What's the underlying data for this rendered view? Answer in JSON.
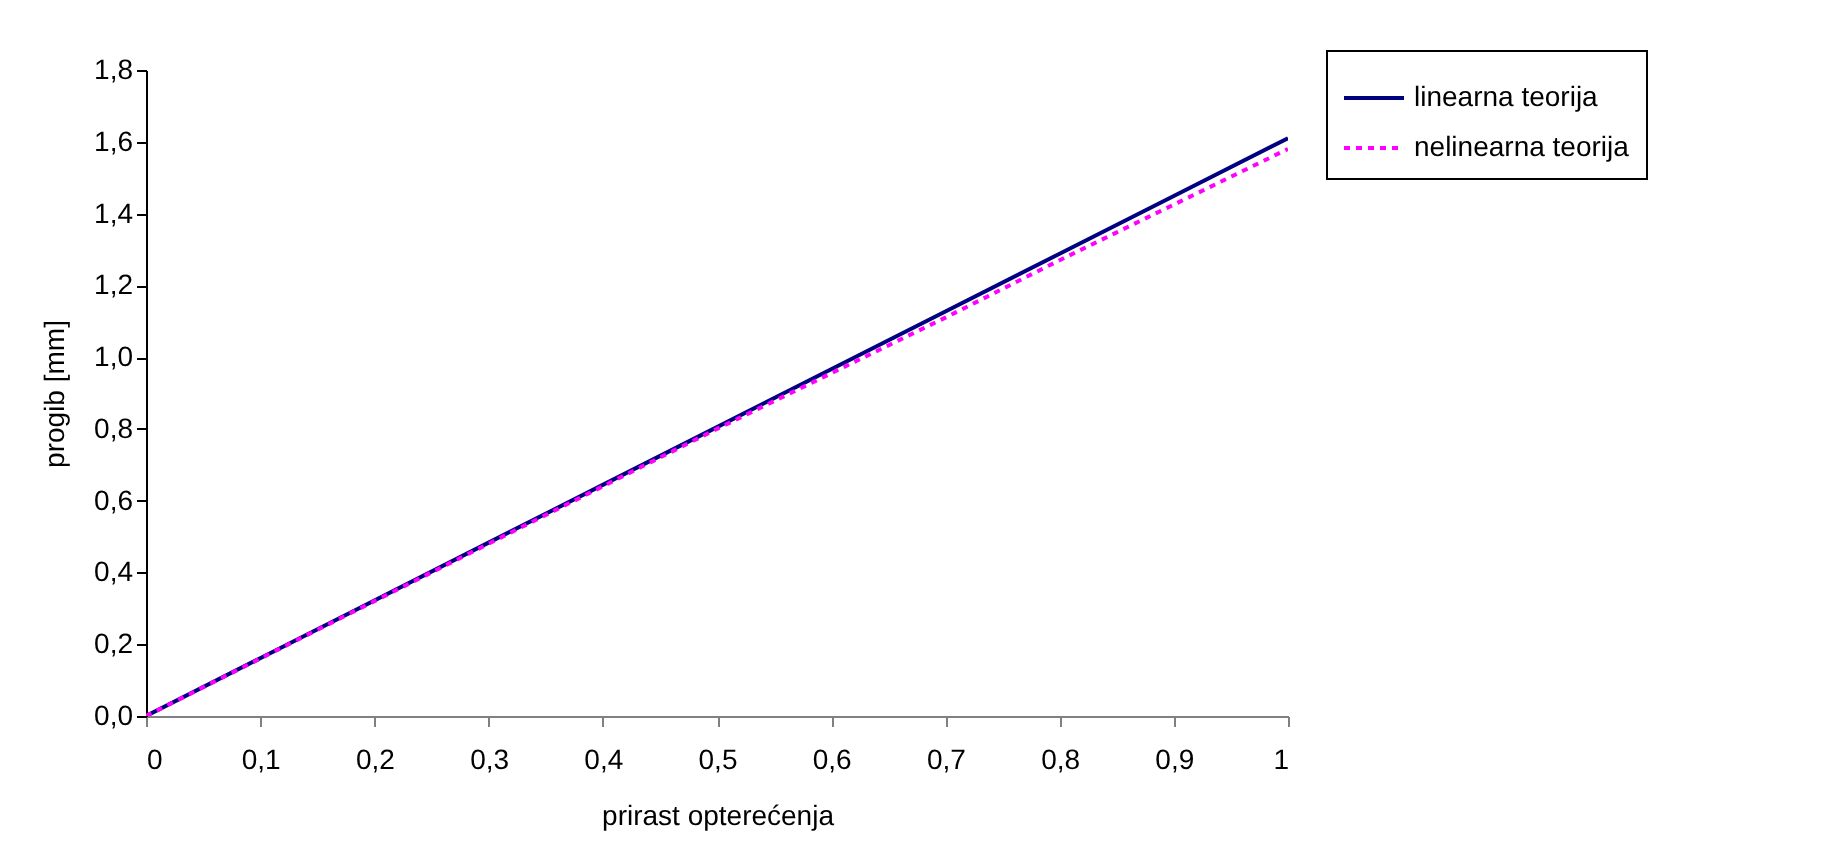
{
  "chart_data": {
    "type": "line",
    "xlabel": "prirast opterećenja",
    "ylabel": "progib [mm]",
    "x": [
      0,
      0.1,
      0.2,
      0.3,
      0.4,
      0.5,
      0.6,
      0.7,
      0.8,
      0.9,
      1
    ],
    "series": [
      {
        "name": "linearna teorija",
        "color": "#000080",
        "line_style": "solid",
        "values": [
          0,
          0.161,
          0.322,
          0.483,
          0.644,
          0.805,
          0.966,
          1.127,
          1.288,
          1.449,
          1.61
        ]
      },
      {
        "name": "nelinearna teorija",
        "color": "#ff00ff",
        "line_style": "dotted",
        "values": [
          0,
          0.16,
          0.32,
          0.48,
          0.64,
          0.8,
          0.955,
          1.11,
          1.27,
          1.425,
          1.58
        ]
      }
    ],
    "xlim": [
      0,
      1
    ],
    "ylim": [
      0,
      1.8
    ],
    "xticks": [
      0,
      {
        "value": 0.1,
        "label": "0,1"
      },
      {
        "value": 0.2,
        "label": "0,2"
      },
      {
        "value": 0.3,
        "label": "0,3"
      },
      {
        "value": 0.4,
        "label": "0,4"
      },
      {
        "value": 0.5,
        "label": "0,5"
      },
      {
        "value": 0.6,
        "label": "0,6"
      },
      {
        "value": 0.7,
        "label": "0,7"
      },
      {
        "value": 0.8,
        "label": "0,8"
      },
      {
        "value": 0.9,
        "label": "0,9"
      },
      1
    ],
    "yticks": [
      {
        "value": 0,
        "label": "0,0"
      },
      {
        "value": 0.2,
        "label": "0,2"
      },
      {
        "value": 0.4,
        "label": "0,4"
      },
      {
        "value": 0.6,
        "label": "0,6"
      },
      {
        "value": 0.8,
        "label": "0,8"
      },
      {
        "value": 1,
        "label": "1,0"
      },
      {
        "value": 1.2,
        "label": "1,2"
      },
      {
        "value": 1.4,
        "label": "1,4"
      },
      {
        "value": 1.6,
        "label": "1,6"
      },
      {
        "value": 1.8,
        "label": "1,8"
      }
    ],
    "grid": false,
    "legend": "top right"
  }
}
